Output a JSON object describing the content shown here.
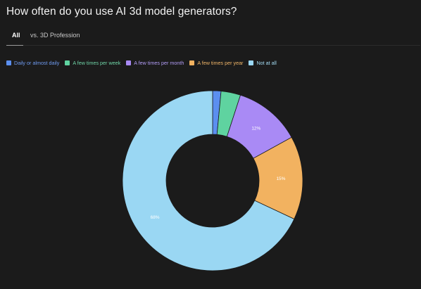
{
  "page": {
    "title": "How often do you use AI 3d model generators?"
  },
  "tabs": [
    {
      "label": "All",
      "active": true
    },
    {
      "label": "vs. 3D Profession",
      "active": false
    }
  ],
  "chart_data": {
    "type": "pie",
    "donut": true,
    "legend_position": "top-left",
    "categories": [
      "Daily or almost daily",
      "A few times per week",
      "A few times per month",
      "A few times per year",
      "Not at all"
    ],
    "values": [
      1.5,
      3.5,
      12,
      15,
      68
    ],
    "data_labels": [
      "",
      "",
      "12%",
      "15%",
      "68%"
    ],
    "colors": [
      "#5b8ff0",
      "#5fd3a0",
      "#a98af5",
      "#f2b260",
      "#9ad7f3"
    ],
    "legend_text_colors": [
      "#6f9bf2",
      "#6fd3a6",
      "#b19cf5",
      "#f0b568",
      "#a4dcf4"
    ]
  }
}
